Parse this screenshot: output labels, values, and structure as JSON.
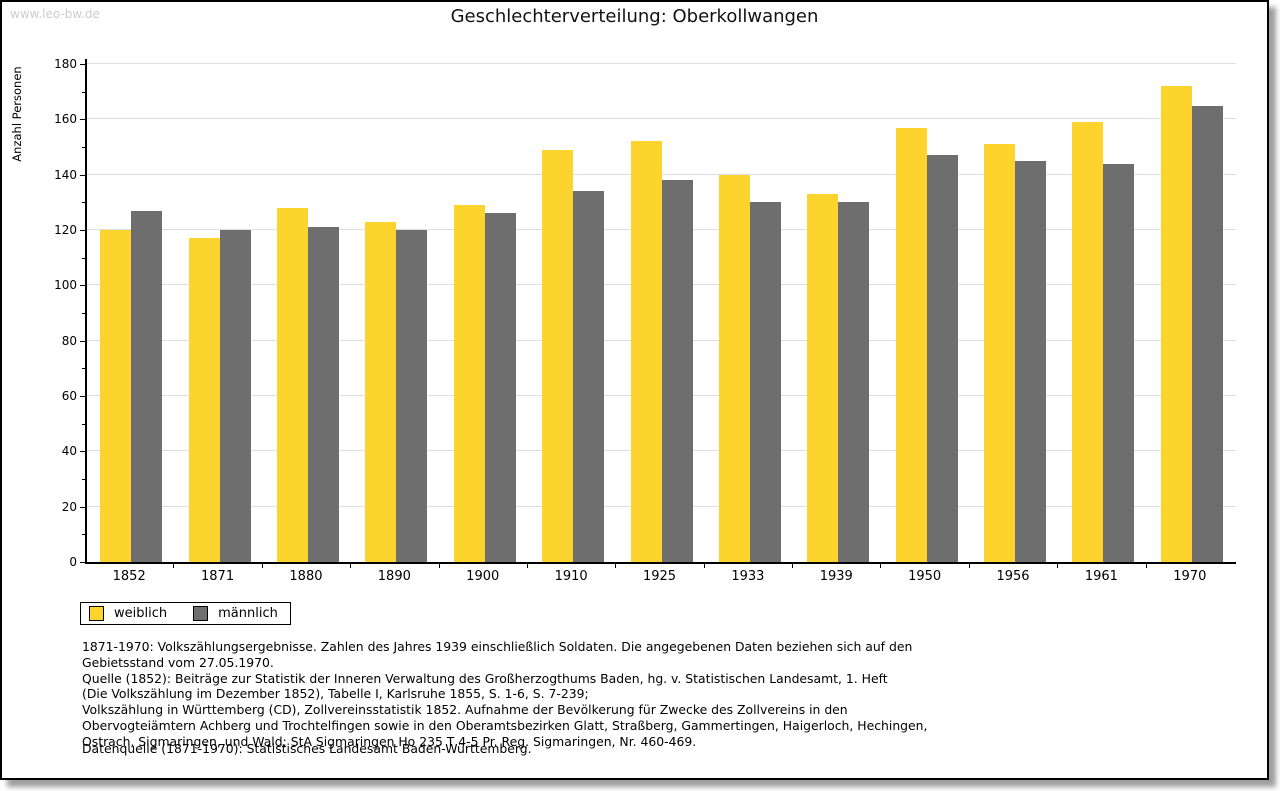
{
  "watermark": "www.leo-bw.de",
  "title": "Geschlechterverteilung: Oberkollwangen",
  "chart_data": {
    "type": "bar",
    "title": "Geschlechterverteilung: Oberkollwangen",
    "xlabel": "",
    "ylabel": "Anzahl Personen",
    "ylim": [
      0,
      180
    ],
    "ytick_step": 20,
    "yminor_step": 10,
    "grid": true,
    "legend_position": "bottom-left",
    "categories": [
      "1852",
      "1871",
      "1880",
      "1890",
      "1900",
      "1910",
      "1925",
      "1933",
      "1939",
      "1950",
      "1956",
      "1961",
      "1970"
    ],
    "series": [
      {
        "name": "weiblich",
        "color": "#FDD42E",
        "values": [
          120,
          117,
          128,
          123,
          129,
          149,
          152,
          140,
          133,
          157,
          151,
          159,
          172
        ]
      },
      {
        "name": "männlich",
        "color": "#6E6E6E",
        "values": [
          127,
          120,
          121,
          120,
          126,
          134,
          138,
          130,
          130,
          147,
          145,
          144,
          165
        ]
      }
    ]
  },
  "colors": {
    "female_bar": "#FDD42E",
    "male_bar": "#6E6E6E",
    "gridline": "#DEDEDE",
    "watermark_text": "#CCCCCC"
  },
  "footnotes": {
    "lines": [
      "1871-1970: Volkszählungsergebnisse. Zahlen des Jahres 1939 einschließlich Soldaten. Die angegebenen Daten beziehen sich auf den",
      "Gebietsstand vom 27.05.1970.",
      "Quelle (1852): Beiträge zur Statistik der Inneren Verwaltung des Großherzogthums Baden, hg. v. Statistischen Landesamt, 1. Heft",
      "(Die Volkszählung im Dezember 1852), Tabelle I, Karlsruhe 1855, S. 1-6, S. 7-239;",
      "Volkszählung in Württemberg (CD), Zollvereinsstatistik 1852. Aufnahme der Bevölkerung für Zwecke des Zollvereins in den",
      "Obervogteiämtern Achberg und Trochtelfingen sowie in den Oberamtsbezirken Glatt, Straßberg, Gammertingen, Haigerloch, Hechingen,",
      "Ostrach, Sigmaringen, und Wald; StA Sigmaringen Ho 235 T 4-5 Pr. Reg. Sigmaringen, Nr. 460-469."
    ],
    "datasource": "Datenquelle (1871-1970): Statistisches Landesamt Baden-Württemberg."
  }
}
